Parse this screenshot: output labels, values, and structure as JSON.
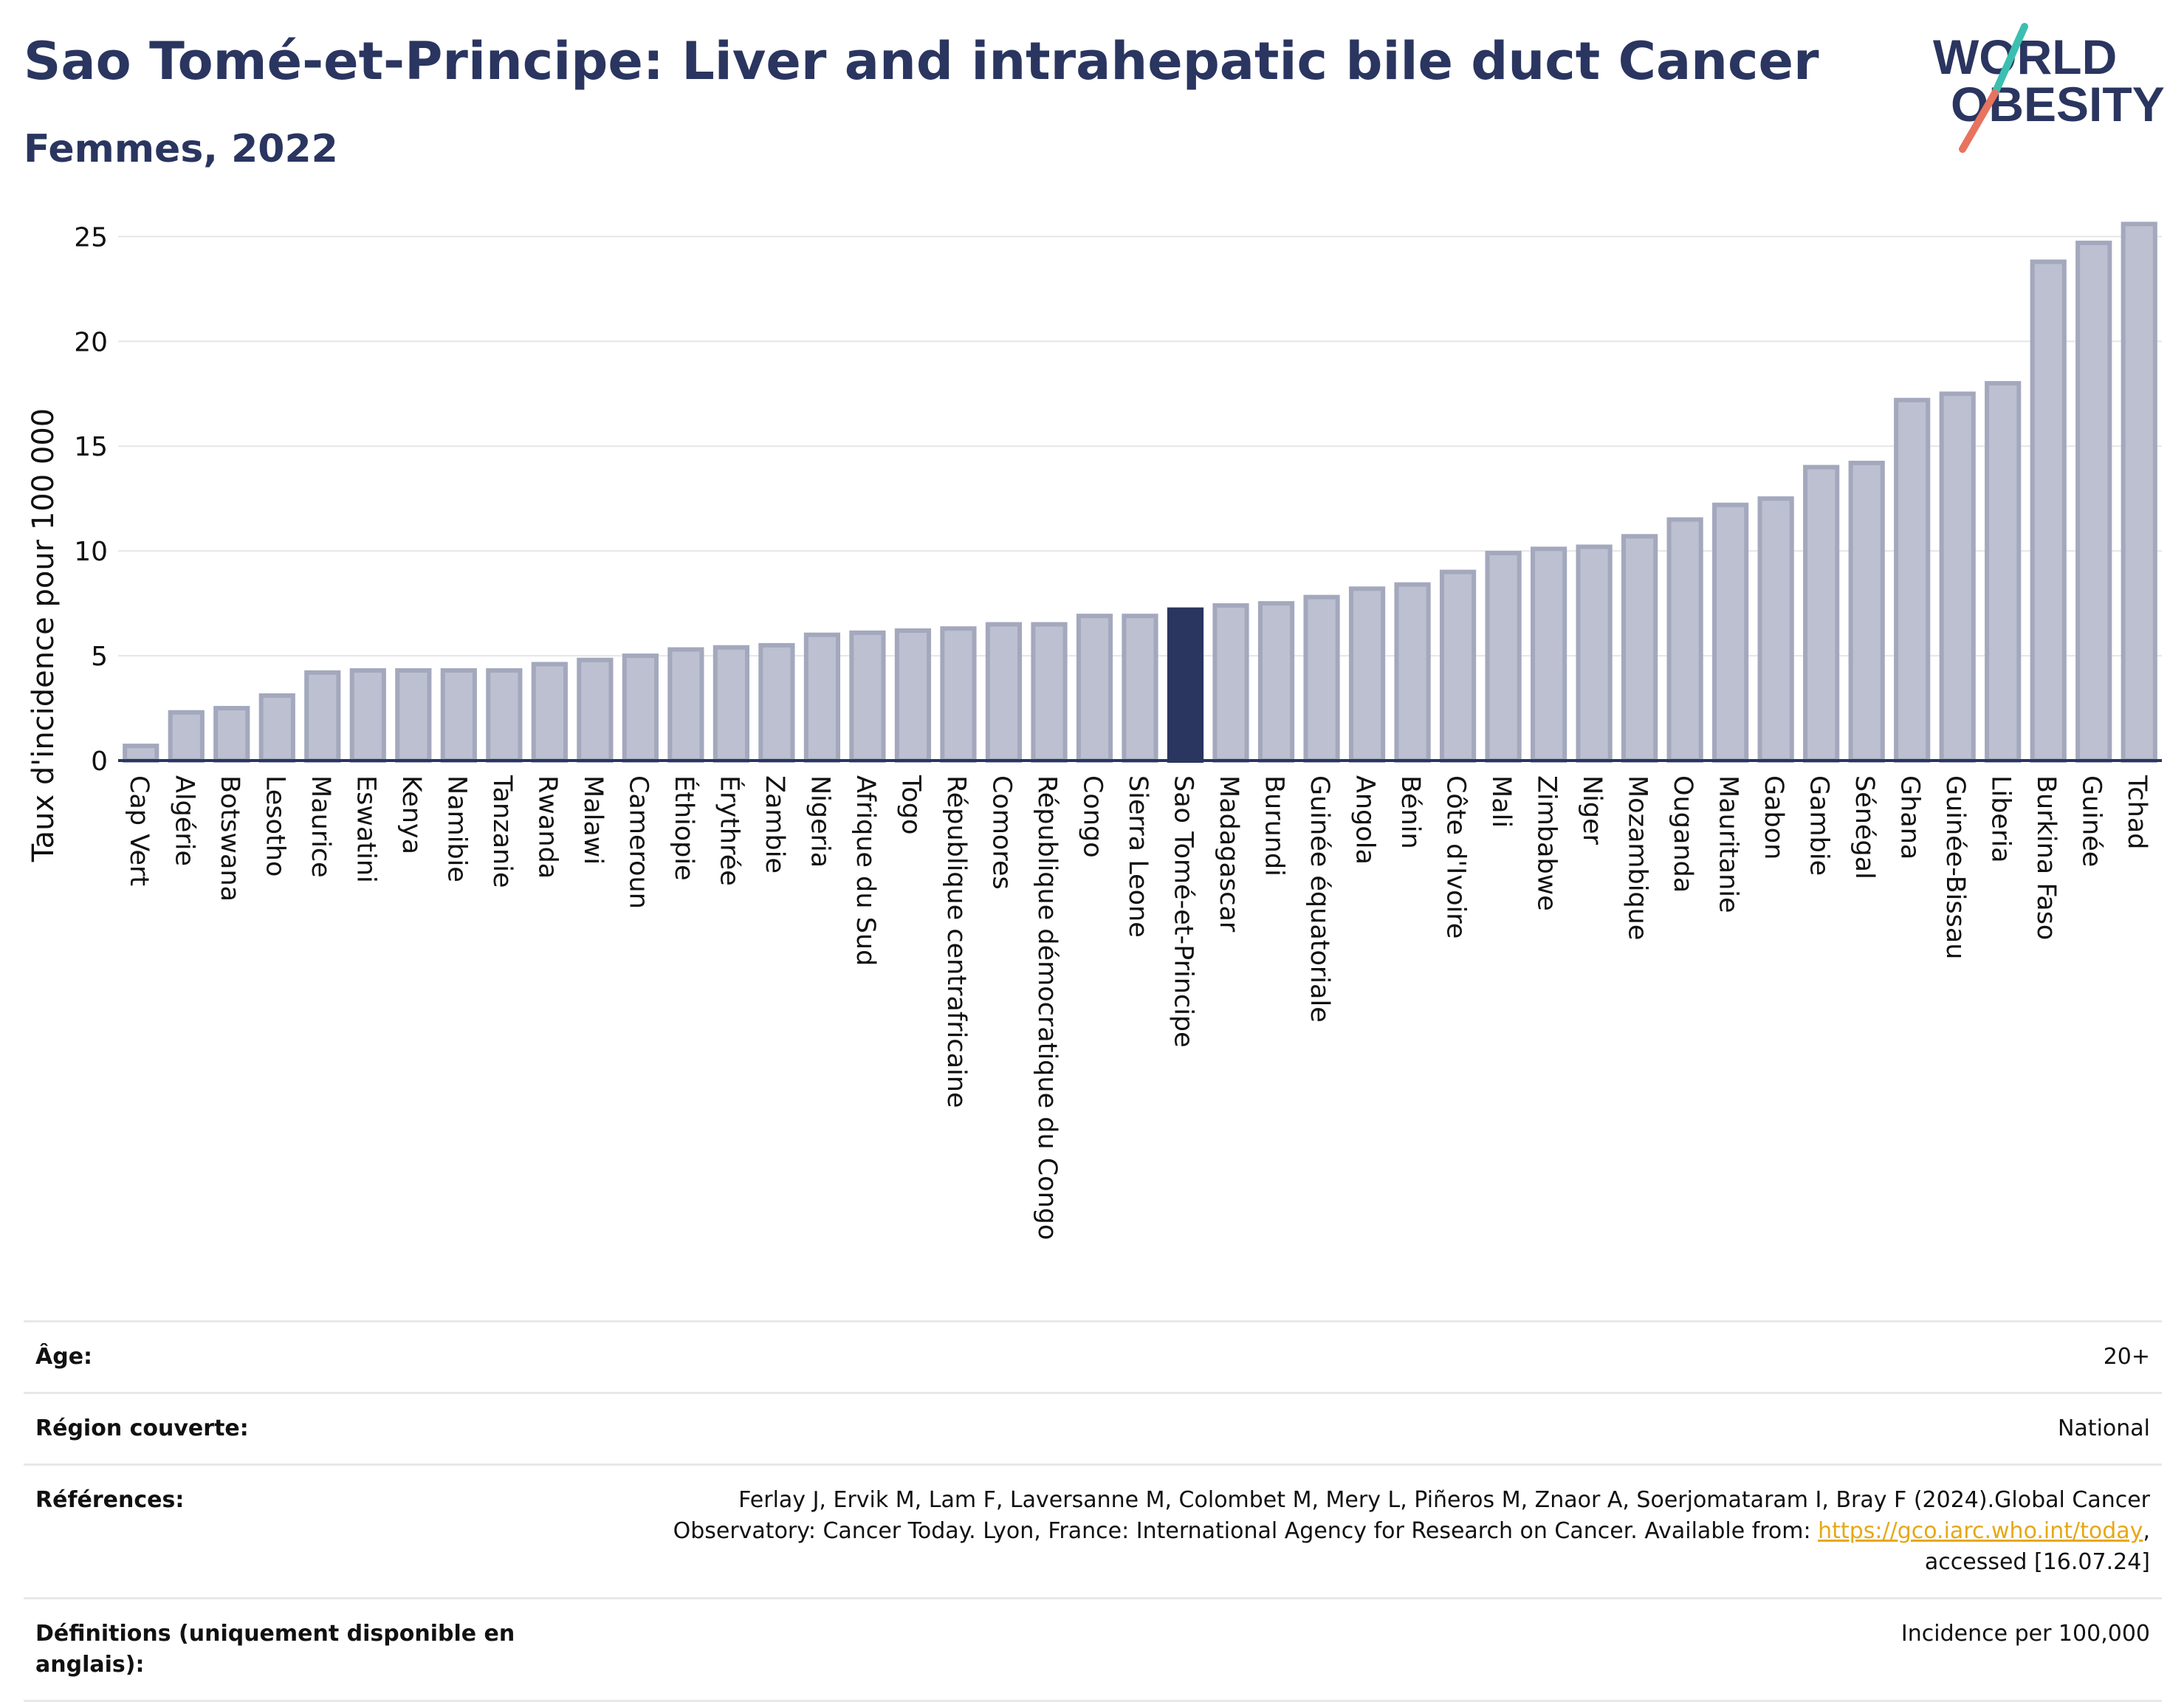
{
  "header": {
    "title": "Sao Tomé-et-Principe: Liver and intrahepatic bile duct Cancer",
    "subtitle": "Femmes, 2022"
  },
  "logo": {
    "line1": "WORLD",
    "line2": "OBESITY",
    "colors": {
      "text": "#2a3560",
      "slash_top": "#3bbfb0",
      "slash_bottom": "#e8735f"
    }
  },
  "chart_data": {
    "type": "bar",
    "ylabel": "Taux d'incidence pour 100 000",
    "xlabel": "",
    "ylim": [
      0,
      26
    ],
    "yticks": [
      0,
      5,
      10,
      15,
      20,
      25
    ],
    "grid": true,
    "highlight": "Sao Tomé-et-Principe",
    "colors": {
      "bar": "#bcc0d0",
      "bar_edge": "#a3a8bd",
      "highlight": "#2a3560",
      "grid": "#e6e6ea",
      "axis": "#2a3560"
    },
    "categories": [
      "Cap Vert",
      "Algérie",
      "Botswana",
      "Lesotho",
      "Maurice",
      "Eswatini",
      "Kenya",
      "Namibie",
      "Tanzanie",
      "Rwanda",
      "Malawi",
      "Cameroun",
      "Éthiopie",
      "Érythrée",
      "Zambie",
      "Nigeria",
      "Afrique du Sud",
      "Togo",
      "République centrafricaine",
      "Comores",
      "République démocratique du Congo",
      "Congo",
      "Sierra Leone",
      "Sao Tomé-et-Principe",
      "Madagascar",
      "Burundi",
      "Guinée équatoriale",
      "Angola",
      "Bénin",
      "Côte d'Ivoire",
      "Mali",
      "Zimbabwe",
      "Niger",
      "Mozambique",
      "Ouganda",
      "Mauritanie",
      "Gabon",
      "Gambie",
      "Sénégal",
      "Ghana",
      "Guinée-Bissau",
      "Liberia",
      "Burkina Faso",
      "Guinée",
      "Tchad"
    ],
    "values": [
      0.7,
      2.3,
      2.5,
      3.1,
      4.2,
      4.3,
      4.3,
      4.3,
      4.3,
      4.6,
      4.8,
      5.0,
      5.3,
      5.4,
      5.5,
      6.0,
      6.1,
      6.2,
      6.3,
      6.5,
      6.5,
      6.9,
      6.9,
      7.2,
      7.4,
      7.5,
      7.8,
      8.2,
      8.4,
      9.0,
      9.9,
      10.1,
      10.2,
      10.7,
      11.5,
      12.2,
      12.5,
      14.0,
      14.2,
      17.2,
      17.5,
      18.0,
      23.8,
      24.7,
      25.6
    ]
  },
  "meta": {
    "age_label": "Âge:",
    "age_value": "20+",
    "region_label": "Région couverte:",
    "region_value": "National",
    "refs_label": "Références:",
    "refs_text_1": "Ferlay J, Ervik M, Lam F, Laversanne M, Colombet M, Mery L, Piñeros M, Znaor A, Soerjomataram I, Bray F (2024).Global Cancer",
    "refs_text_2": "Observatory: Cancer Today. Lyon, France: International Agency for Research on Cancer. Available from: ",
    "refs_link": "https://gco.iarc.who.int/today",
    "refs_text_3": ",",
    "refs_text_4": "accessed [16.07.24]",
    "defs_label": "Définitions (uniquement disponible en anglais):",
    "defs_value": "Incidence per 100,000"
  }
}
